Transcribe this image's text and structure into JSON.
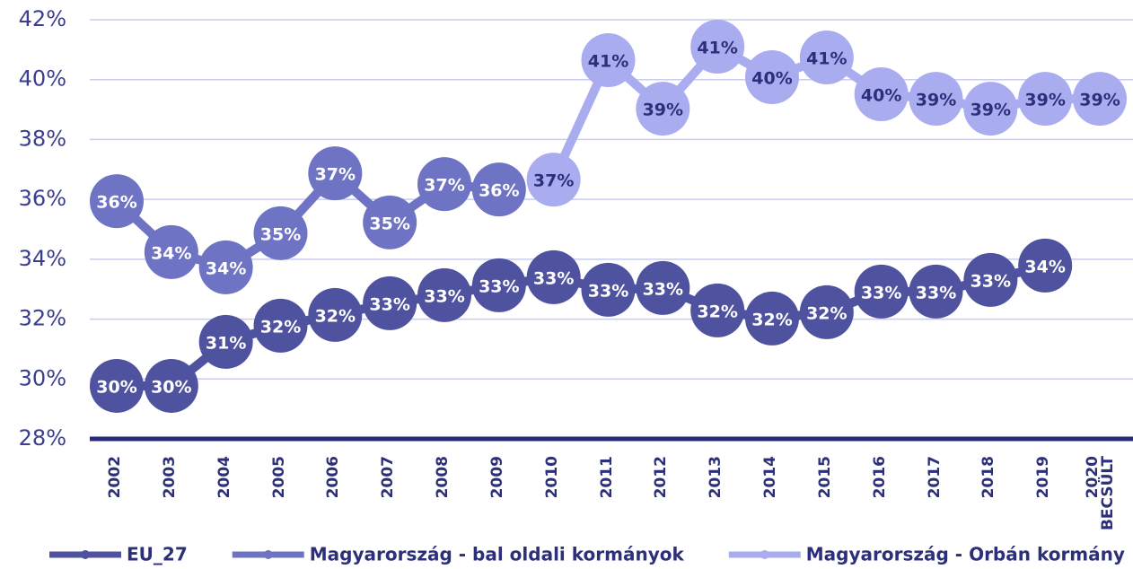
{
  "chart_data": {
    "type": "line",
    "categories": [
      "2002",
      "2003",
      "2004",
      "2005",
      "2006",
      "2007",
      "2008",
      "2009",
      "2010",
      "2011",
      "2012",
      "2013",
      "2014",
      "2015",
      "2016",
      "2017",
      "2018",
      "2019",
      "2020 BECSÜLT"
    ],
    "series": [
      {
        "name": "EU_27",
        "color": "#4f539f",
        "values": [
          29.77,
          29.77,
          31.24,
          31.78,
          32.14,
          32.53,
          32.8,
          33.13,
          33.4,
          32.98,
          33.04,
          32.29,
          32.02,
          32.23,
          32.92,
          32.92,
          33.31,
          33.79,
          null
        ],
        "value_labels": [
          "30%",
          "30%",
          "31%",
          "32%",
          "32%",
          "33%",
          "33%",
          "33%",
          "33%",
          "33%",
          "33%",
          "32%",
          "32%",
          "32%",
          "33%",
          "33%",
          "33%",
          "34%",
          null
        ]
      },
      {
        "name": "Magyarország - bal oldali kormányok",
        "color": "#6e73c4",
        "values": [
          35.94,
          34.24,
          33.73,
          34.87,
          36.87,
          35.23,
          36.51,
          36.33,
          null,
          null,
          null,
          null,
          null,
          null,
          null,
          null,
          null,
          null,
          null
        ],
        "value_labels": [
          "36%",
          "34%",
          "34%",
          "35%",
          "37%",
          "35%",
          "37%",
          "36%",
          null,
          null,
          null,
          null,
          null,
          null,
          null,
          null,
          null,
          null,
          null
        ]
      },
      {
        "name": "Magyarország - Orbán kormány",
        "color": "#a9adf0",
        "values": [
          null,
          null,
          null,
          null,
          null,
          null,
          null,
          null,
          36.66,
          40.65,
          39.03,
          41.1,
          40.08,
          40.74,
          39.51,
          39.36,
          39.03,
          39.36,
          39.36
        ],
        "value_labels": [
          null,
          null,
          null,
          null,
          null,
          null,
          null,
          null,
          "37%",
          "41%",
          "39%",
          "41%",
          "40%",
          "41%",
          "40%",
          "39%",
          "39%",
          "39%",
          "39%"
        ]
      }
    ],
    "ylim": [
      28,
      42
    ],
    "yticks": [
      {
        "value": 28,
        "label": "28%"
      },
      {
        "value": 30,
        "label": "30%"
      },
      {
        "value": 32,
        "label": "32%"
      },
      {
        "value": 34,
        "label": "34%"
      },
      {
        "value": 36,
        "label": "36%"
      },
      {
        "value": 38,
        "label": "38%"
      },
      {
        "value": 40,
        "label": "40%"
      },
      {
        "value": 42,
        "label": "42%"
      }
    ],
    "grid": true
  }
}
